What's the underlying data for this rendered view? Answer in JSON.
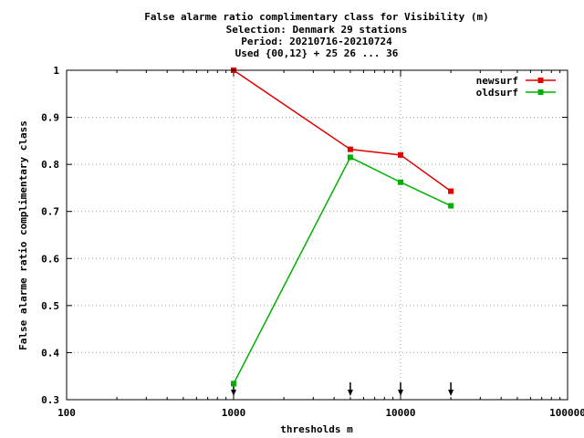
{
  "chart_data": {
    "type": "line",
    "title_lines": [
      "False alarme ratio complimentary class  for Visibility (m)",
      "Selection: Denmark     29 stations",
      "Period: 20210716-20210724",
      "Used {00,12} + 25 26 ... 36"
    ],
    "xlabel": "thresholds m",
    "ylabel": "False alarme ratio complimentary class",
    "x_scale": "log",
    "xlim": [
      100,
      100000
    ],
    "ylim": [
      0.3,
      1.0
    ],
    "x_ticks": [
      100,
      1000,
      10000,
      100000
    ],
    "x_tick_labels": [
      "100",
      "1000",
      "10000",
      "100000"
    ],
    "y_ticks": [
      0.3,
      0.4,
      0.5,
      0.6,
      0.7,
      0.8,
      0.9,
      1.0
    ],
    "y_tick_labels": [
      "0.3",
      "0.4",
      "0.5",
      "0.6",
      "0.7",
      "0.8",
      "0.9",
      "1"
    ],
    "grid": true,
    "legend_position": "top-right",
    "series": [
      {
        "name": "newsurf",
        "color": "#e00000",
        "x": [
          1000,
          5000,
          10000,
          20000
        ],
        "values": [
          1.0,
          0.832,
          0.82,
          0.743
        ]
      },
      {
        "name": "oldsurf",
        "color": "#00b000",
        "x": [
          1000,
          5000,
          10000,
          20000
        ],
        "values": [
          0.334,
          0.815,
          0.762,
          0.712
        ]
      }
    ],
    "threshold_markers": [
      1000,
      5000,
      10000,
      20000
    ]
  }
}
